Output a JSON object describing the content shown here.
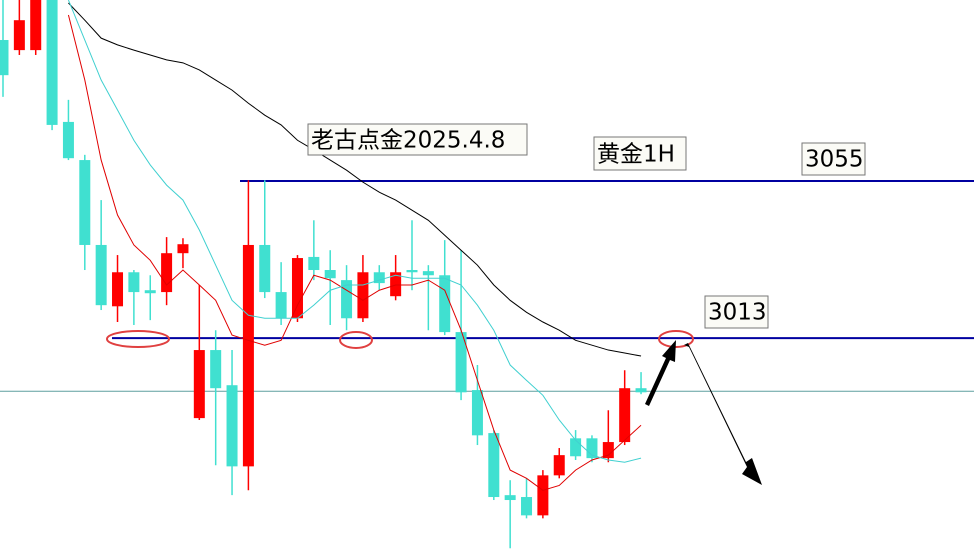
{
  "chart_data": {
    "type": "candlestick",
    "annotations": [
      "老古点金2025.4.8",
      "黄金1H"
    ],
    "up_color": "#ff0000",
    "down_color": "#40e0d0",
    "ylim": [
      2955,
      3103.4
    ],
    "candles": [
      {
        "open": 3092.7,
        "high": 3103.4,
        "low": 3077.5,
        "close": 3083.3
      },
      {
        "open": 3090.0,
        "high": 3103.4,
        "low": 3088.7,
        "close": 3098.0
      },
      {
        "open": 3090.0,
        "high": 3103.4,
        "low": 3088.7,
        "close": 3103.4
      },
      {
        "open": 3103.4,
        "high": 3103.4,
        "low": 3068.6,
        "close": 3070.0
      },
      {
        "open": 3070.8,
        "high": 3076.7,
        "low": 3060.6,
        "close": 3061.1
      },
      {
        "open": 3060.6,
        "high": 3062.0,
        "low": 3031.2,
        "close": 3037.9
      },
      {
        "open": 3037.9,
        "high": 3049.9,
        "low": 3020.5,
        "close": 3021.8
      },
      {
        "open": 3021.5,
        "high": 3035.2,
        "low": 3017.3,
        "close": 3030.6
      },
      {
        "open": 3030.6,
        "high": 3031.2,
        "low": 3016.5,
        "close": 3025.3
      },
      {
        "open": 3025.8,
        "high": 3029.8,
        "low": 3017.8,
        "close": 3025.0
      },
      {
        "open": 3025.3,
        "high": 3040.0,
        "low": 3021.8,
        "close": 3035.7
      },
      {
        "open": 3035.7,
        "high": 3039.7,
        "low": 3031.7,
        "close": 3038.1
      },
      {
        "open": 2991.6,
        "high": 3027.2,
        "low": 2991.1,
        "close": 3009.8
      },
      {
        "open": 3009.8,
        "high": 3015.1,
        "low": 2979.0,
        "close": 2999.6
      },
      {
        "open": 3000.4,
        "high": 3009.8,
        "low": 2971.0,
        "close": 2978.7
      },
      {
        "open": 2978.7,
        "high": 3055.2,
        "low": 2972.3,
        "close": 3037.9
      },
      {
        "open": 3037.9,
        "high": 3055.2,
        "low": 3023.7,
        "close": 3025.3
      },
      {
        "open": 3025.3,
        "high": 3033.3,
        "low": 3016.5,
        "close": 3018.3
      },
      {
        "open": 3018.3,
        "high": 3035.2,
        "low": 3017.3,
        "close": 3034.4
      },
      {
        "open": 3034.7,
        "high": 3044.5,
        "low": 3028.5,
        "close": 3031.2
      },
      {
        "open": 3031.2,
        "high": 3036.5,
        "low": 3016.5,
        "close": 3029.0
      },
      {
        "open": 3028.5,
        "high": 3032.5,
        "low": 3015.1,
        "close": 3018.3
      },
      {
        "open": 3018.3,
        "high": 3035.2,
        "low": 3017.3,
        "close": 3030.6
      },
      {
        "open": 3030.6,
        "high": 3032.5,
        "low": 3025.8,
        "close": 3027.7
      },
      {
        "open": 3024.2,
        "high": 3035.2,
        "low": 3023.1,
        "close": 3030.6
      },
      {
        "open": 3031.2,
        "high": 3044.5,
        "low": 3025.8,
        "close": 3030.6
      },
      {
        "open": 3030.9,
        "high": 3032.5,
        "low": 3015.1,
        "close": 3029.8
      },
      {
        "open": 3029.8,
        "high": 3039.2,
        "low": 3013.8,
        "close": 3014.6
      },
      {
        "open": 3014.6,
        "high": 3036.5,
        "low": 2996.4,
        "close": 2998.5
      },
      {
        "open": 2999.1,
        "high": 3005.8,
        "low": 2984.4,
        "close": 2987.0
      },
      {
        "open": 2987.6,
        "high": 2988.4,
        "low": 2969.7,
        "close": 2970.5
      },
      {
        "open": 2971.0,
        "high": 2975.0,
        "low": 2956.8,
        "close": 2969.7
      },
      {
        "open": 2970.5,
        "high": 2975.5,
        "low": 2964.8,
        "close": 2965.6
      },
      {
        "open": 2965.6,
        "high": 2977.7,
        "low": 2964.8,
        "close": 2976.3
      },
      {
        "open": 2976.3,
        "high": 2983.6,
        "low": 2975.5,
        "close": 2981.7
      },
      {
        "open": 2986.2,
        "high": 2988.4,
        "low": 2980.4,
        "close": 2981.4
      },
      {
        "open": 2986.2,
        "high": 2987.0,
        "low": 2979.8,
        "close": 2980.9
      },
      {
        "open": 2980.9,
        "high": 2993.7,
        "low": 2979.8,
        "close": 2985.2
      },
      {
        "open": 2985.2,
        "high": 3004.4,
        "low": 2984.4,
        "close": 2999.6
      },
      {
        "open": 2999.6,
        "high": 3003.9,
        "low": 2998.0,
        "close": 2998.5
      }
    ],
    "lines": [
      {
        "color": "#000000",
        "values": [
          null,
          null,
          null,
          null,
          3102.6,
          3098.0,
          3093.2,
          3091.4,
          3090.0,
          3088.7,
          3087.4,
          3086.6,
          3084.7,
          3082.0,
          3079.3,
          3075.8,
          3072.6,
          3070.0,
          3065.9,
          3063.3,
          3060.6,
          3057.9,
          3054.7,
          3052.0,
          3049.9,
          3047.2,
          3044.5,
          3040.5,
          3036.5,
          3032.5,
          3027.2,
          3023.1,
          3019.9,
          3017.3,
          3015.1,
          3012.4,
          3011.1,
          3009.8,
          3009.0,
          3008.2
        ]
      },
      {
        "color": "#e00000",
        "values": [
          null,
          null,
          null,
          null,
          3099.4,
          3082.0,
          3060.6,
          3045.9,
          3037.9,
          3033.8,
          3027.2,
          3031.2,
          3027.2,
          3023.1,
          3013.8,
          3012.4,
          3011.1,
          3012.4,
          3021.8,
          3029.8,
          3028.5,
          3025.8,
          3023.1,
          3025.8,
          3027.2,
          3027.2,
          3028.5,
          3025.8,
          3015.1,
          3001.7,
          2988.4,
          2977.7,
          2975.5,
          2972.3,
          2973.6,
          2977.7,
          2980.4,
          2981.7,
          2985.7,
          2989.7
        ]
      },
      {
        "color": "#40d0d0",
        "values": [
          null,
          null,
          null,
          null,
          3103.4,
          3092.7,
          3082.0,
          3074.0,
          3065.9,
          3059.3,
          3053.9,
          3049.9,
          3041.9,
          3032.5,
          3023.1,
          3019.1,
          3018.3,
          3018.3,
          3018.3,
          3021.8,
          3025.8,
          3027.2,
          3027.2,
          3028.5,
          3029.8,
          3029.0,
          3029.0,
          3029.0,
          3027.2,
          3021.8,
          3015.1,
          3005.8,
          3001.7,
          2997.7,
          2991.1,
          2985.7,
          2981.7,
          2980.4,
          2979.8,
          2980.9
        ]
      }
    ],
    "levels": [
      {
        "value": 3055,
        "color": "#0000a0"
      },
      {
        "value": 3013,
        "color": "#0000a0"
      }
    ],
    "price_line": 2998.8,
    "price_line_color": "#5f9f9f"
  }
}
